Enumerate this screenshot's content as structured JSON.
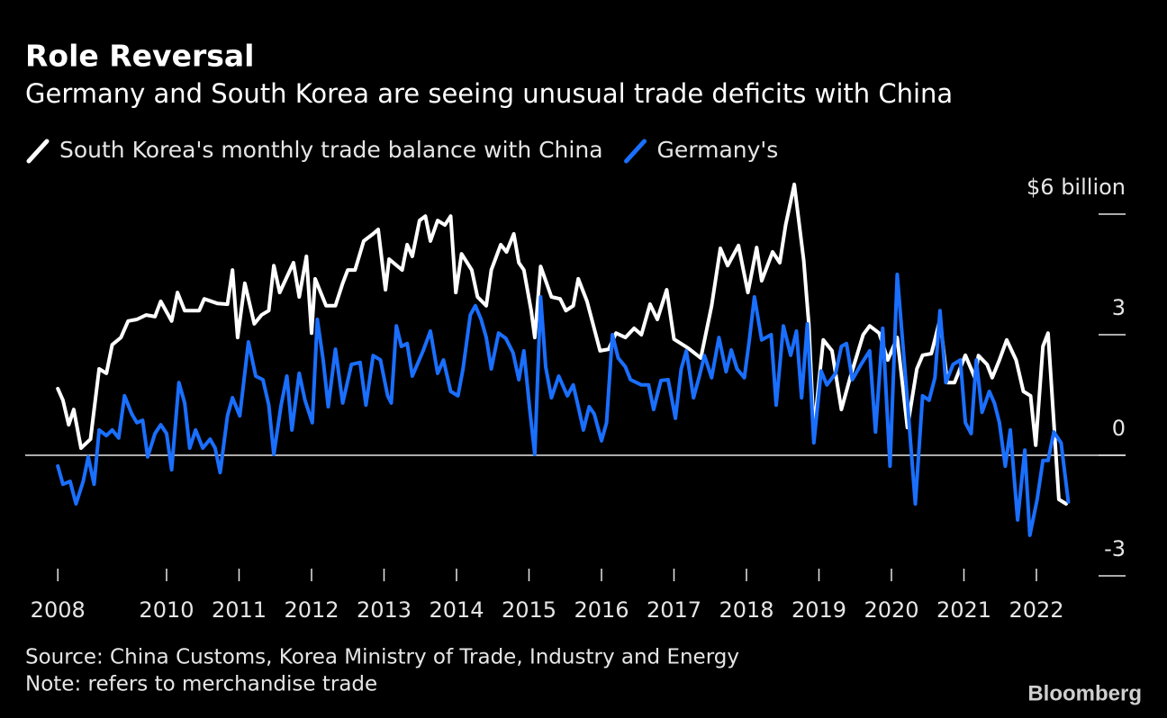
{
  "chart_data": {
    "type": "line",
    "title": "Role Reversal",
    "subtitle": "Germany and South Korea are seeing unusual trade deficits with China",
    "source": "Source: China Customs, Korea Ministry of Trade, Industry and Energy",
    "note": "Note: refers to merchandise trade",
    "branding": "Bloomberg",
    "xlim": [
      2008.05,
      2023.23
    ],
    "xticks": [
      {
        "value": 2008.5,
        "label": "2008"
      },
      2010,
      2011,
      2012,
      2013,
      2014,
      2015,
      2016,
      2017,
      2018,
      2019,
      2020,
      2021,
      2022
    ],
    "ylim": [
      -3,
      6
    ],
    "yticks": [
      {
        "value": 6,
        "label": "$6 billion"
      },
      3,
      0,
      -3
    ],
    "series": [
      {
        "name": "South Korea's monthly trade balance with China",
        "color": "#ffffff",
        "x": [
          2008.5,
          2008.57,
          2008.65,
          2008.72,
          2008.82,
          2008.95,
          2009.07,
          2009.17,
          2009.25,
          2009.37,
          2009.47,
          2009.59,
          2009.72,
          2009.84,
          2009.92,
          2010.07,
          2010.15,
          2010.25,
          2010.45,
          2010.52,
          2010.7,
          2010.84,
          2010.91,
          2010.98,
          2011.08,
          2011.21,
          2011.31,
          2011.41,
          2011.48,
          2011.56,
          2011.75,
          2011.83,
          2011.93,
          2012.0,
          2012.05,
          2012.2,
          2012.33,
          2012.43,
          2012.5,
          2012.6,
          2012.72,
          2012.85,
          2012.92,
          2013.02,
          2013.07,
          2013.25,
          2013.32,
          2013.39,
          2013.49,
          2013.57,
          2013.64,
          2013.74,
          2013.84,
          2013.92,
          2013.99,
          2014.07,
          2014.21,
          2014.29,
          2014.41,
          2014.48,
          2014.61,
          2014.69,
          2014.79,
          2014.86,
          2014.93,
          2015.03,
          2015.08,
          2015.16,
          2015.31,
          2015.43,
          2015.51,
          2015.61,
          2015.68,
          2015.8,
          2015.98,
          2016.1,
          2016.2,
          2016.33,
          2016.45,
          2016.55,
          2016.67,
          2016.77,
          2016.9,
          2017.0,
          2017.2,
          2017.37,
          2017.52,
          2017.64,
          2017.74,
          2017.89,
          2018.02,
          2018.14,
          2018.21,
          2018.36,
          2018.46,
          2018.54,
          2018.66,
          2018.79,
          2018.86,
          2018.93,
          2019.06,
          2019.18,
          2019.31,
          2019.43,
          2019.61,
          2019.7,
          2019.83,
          2019.95,
          2020.08,
          2020.22,
          2020.35,
          2020.43,
          2020.55,
          2020.67,
          2020.77,
          2020.87,
          2021.02,
          2021.15,
          2021.2,
          2021.32,
          2021.39,
          2021.49,
          2021.59,
          2021.72,
          2021.82,
          2021.92,
          2021.99,
          2022.09,
          2022.16,
          2022.31,
          2022.41
        ],
        "values": [
          1.66,
          1.37,
          0.76,
          1.14,
          0.18,
          0.4,
          2.15,
          2.04,
          2.75,
          2.93,
          3.34,
          3.38,
          3.49,
          3.45,
          3.83,
          3.34,
          4.05,
          3.6,
          3.6,
          3.89,
          3.78,
          3.76,
          4.61,
          2.93,
          4.28,
          3.27,
          3.49,
          3.6,
          4.72,
          4.05,
          4.79,
          3.94,
          4.95,
          3.04,
          4.39,
          3.72,
          3.72,
          4.28,
          4.61,
          4.61,
          5.33,
          5.51,
          5.62,
          4.12,
          4.88,
          4.61,
          5.24,
          4.95,
          5.84,
          5.95,
          5.33,
          5.84,
          5.73,
          5.95,
          4.05,
          5.01,
          4.61,
          3.94,
          3.72,
          4.61,
          5.24,
          5.06,
          5.51,
          4.79,
          4.61,
          3.6,
          2.93,
          4.7,
          3.94,
          3.89,
          3.6,
          3.72,
          4.39,
          3.83,
          2.6,
          2.64,
          3.04,
          2.93,
          3.16,
          3.0,
          3.76,
          3.38,
          4.12,
          2.89,
          2.66,
          2.42,
          3.72,
          5.15,
          4.72,
          5.22,
          4.05,
          5.17,
          4.34,
          5.06,
          4.79,
          5.73,
          6.74,
          4.84,
          3.27,
          0.58,
          2.87,
          2.6,
          1.14,
          1.93,
          3.0,
          3.22,
          3.04,
          2.37,
          2.93,
          0.69,
          2.15,
          2.49,
          2.53,
          3.38,
          1.81,
          1.81,
          2.49,
          1.93,
          2.48,
          2.26,
          1.93,
          2.37,
          2.87,
          2.37,
          1.59,
          1.48,
          0.25,
          2.71,
          3.04,
          -1.1,
          -1.21
        ]
      },
      {
        "name": "Germany's",
        "color": "#1a6fff",
        "x": [
          2008.5,
          2008.57,
          2008.67,
          2008.75,
          2008.85,
          2008.92,
          2009.0,
          2009.07,
          2009.17,
          2009.25,
          2009.34,
          2009.42,
          2009.52,
          2009.59,
          2009.67,
          2009.74,
          2009.84,
          2009.92,
          2010.0,
          2010.07,
          2010.17,
          2010.25,
          2010.32,
          2010.4,
          2010.5,
          2010.6,
          2010.67,
          2010.74,
          2010.84,
          2010.91,
          2011.01,
          2011.13,
          2011.23,
          2011.33,
          2011.41,
          2011.48,
          2011.58,
          2011.66,
          2011.73,
          2011.83,
          2011.91,
          2012.01,
          2012.08,
          2012.16,
          2012.23,
          2012.33,
          2012.43,
          2012.55,
          2012.67,
          2012.75,
          2012.85,
          2012.95,
          2013.05,
          2013.1,
          2013.17,
          2013.24,
          2013.32,
          2013.39,
          2013.54,
          2013.64,
          2013.74,
          2013.82,
          2013.92,
          2014.02,
          2014.09,
          2014.19,
          2014.26,
          2014.34,
          2014.41,
          2014.48,
          2014.58,
          2014.68,
          2014.78,
          2014.86,
          2014.93,
          2015.01,
          2015.08,
          2015.16,
          2015.23,
          2015.31,
          2015.41,
          2015.53,
          2015.61,
          2015.68,
          2015.75,
          2015.83,
          2015.9,
          2016.0,
          2016.07,
          2016.15,
          2016.23,
          2016.33,
          2016.4,
          2016.55,
          2016.65,
          2016.72,
          2016.82,
          2016.92,
          2017.02,
          2017.1,
          2017.17,
          2017.27,
          2017.35,
          2017.42,
          2017.52,
          2017.62,
          2017.72,
          2017.79,
          2017.87,
          2017.97,
          2018.04,
          2018.11,
          2018.21,
          2018.34,
          2018.41,
          2018.51,
          2018.61,
          2018.69,
          2018.76,
          2018.84,
          2018.93,
          2019.03,
          2019.11,
          2019.23,
          2019.31,
          2019.38,
          2019.46,
          2019.58,
          2019.7,
          2019.78,
          2019.88,
          2019.98,
          2020.08,
          2020.2,
          2020.33,
          2020.43,
          2020.52,
          2020.6,
          2020.67,
          2020.75,
          2020.85,
          2020.95,
          2021.02,
          2021.1,
          2021.17,
          2021.25,
          2021.35,
          2021.42,
          2021.49,
          2021.57,
          2021.64,
          2021.74,
          2021.84,
          2021.91,
          2022.01,
          2022.09,
          2022.16,
          2022.24,
          2022.34,
          2022.44
        ],
        "values": [
          -0.27,
          -0.72,
          -0.65,
          -1.21,
          -0.65,
          -0.04,
          -0.72,
          0.63,
          0.49,
          0.63,
          0.43,
          1.48,
          1.03,
          0.81,
          0.87,
          -0.04,
          0.54,
          0.76,
          0.54,
          -0.36,
          1.81,
          1.3,
          0.18,
          0.63,
          0.18,
          0.4,
          0.18,
          -0.43,
          0.98,
          1.43,
          0.98,
          2.82,
          1.97,
          1.88,
          1.25,
          0.02,
          1.25,
          1.97,
          0.63,
          2.04,
          1.37,
          0.81,
          3.38,
          2.37,
          1.21,
          2.64,
          1.3,
          2.26,
          2.31,
          1.25,
          2.48,
          2.37,
          1.48,
          1.3,
          3.22,
          2.71,
          2.78,
          1.97,
          2.6,
          3.09,
          2.04,
          2.37,
          1.59,
          1.48,
          2.15,
          3.49,
          3.72,
          3.38,
          2.93,
          2.15,
          3.04,
          2.91,
          2.55,
          1.88,
          2.6,
          1.14,
          0.02,
          3.94,
          2.2,
          1.43,
          1.97,
          1.48,
          1.75,
          1.21,
          0.63,
          1.21,
          1.03,
          0.36,
          0.81,
          3.0,
          2.42,
          2.2,
          1.88,
          1.75,
          1.75,
          1.14,
          1.86,
          1.88,
          0.92,
          2.15,
          2.6,
          1.43,
          1.97,
          2.48,
          1.93,
          2.93,
          2.08,
          2.62,
          2.15,
          1.93,
          2.87,
          3.94,
          2.87,
          3.0,
          1.25,
          3.22,
          2.49,
          3.09,
          1.43,
          3.27,
          0.31,
          2.1,
          1.75,
          2.04,
          2.71,
          2.78,
          1.88,
          2.26,
          2.6,
          0.58,
          3.16,
          -0.27,
          4.5,
          1.81,
          -1.21,
          1.48,
          1.37,
          1.93,
          3.6,
          1.81,
          2.26,
          2.37,
          0.81,
          0.54,
          2.37,
          1.07,
          1.59,
          1.3,
          0.81,
          -0.27,
          0.63,
          -1.61,
          0.13,
          -1.99,
          -1.1,
          -0.13,
          -0.13,
          0.58,
          0.31,
          -1.16
        ]
      }
    ]
  }
}
